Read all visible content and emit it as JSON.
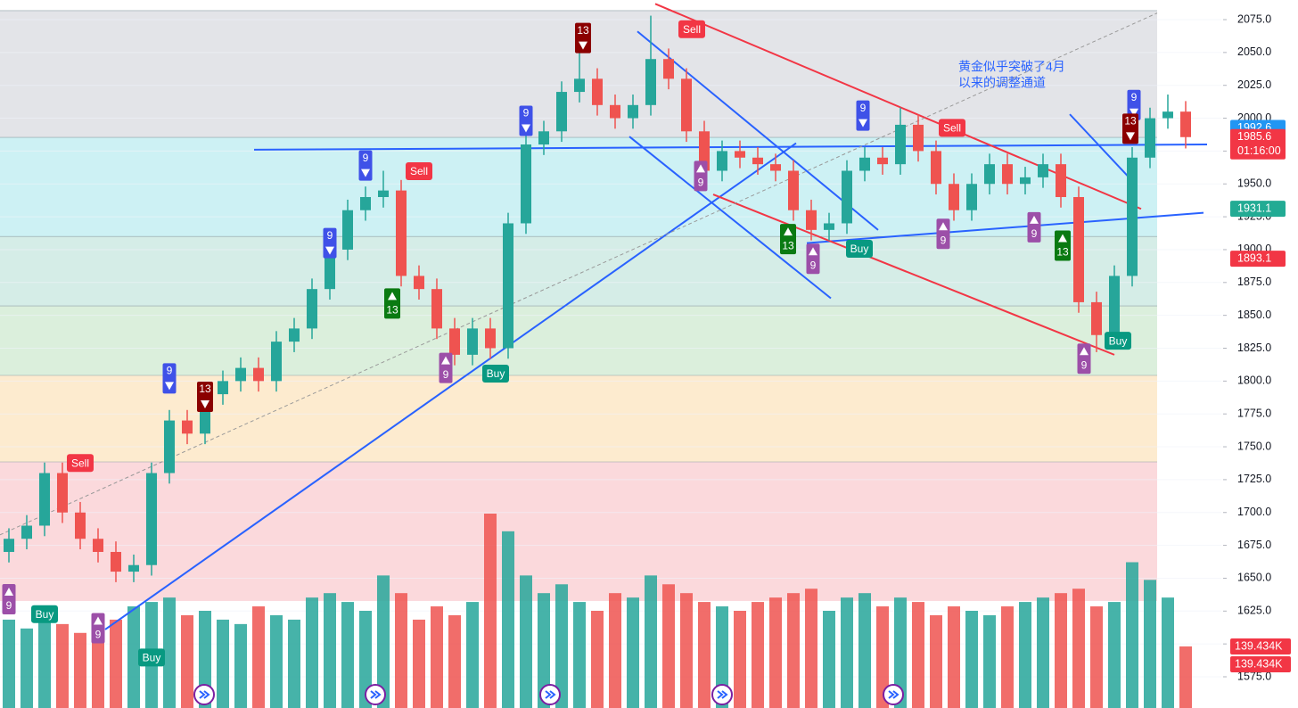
{
  "chart_data": {
    "type": "candlestick",
    "annotation": [
      "黄金似乎突破了4月",
      "以来的调整通道"
    ],
    "open": [
      1670,
      1680,
      1690,
      1730,
      1700,
      1680,
      1670,
      1655,
      1660,
      1730,
      1770,
      1760,
      1790,
      1800,
      1810,
      1800,
      1830,
      1840,
      1870,
      1900,
      1930,
      1940,
      1945,
      1880,
      1870,
      1840,
      1820,
      1840,
      1825,
      1920,
      1980,
      1990,
      2020,
      2030,
      2010,
      2000,
      2010,
      2045,
      2030,
      1990,
      1960,
      1975,
      1970,
      1965,
      1960,
      1930,
      1915,
      1920,
      1960,
      1970,
      1965,
      1995,
      1975,
      1950,
      1930,
      1950,
      1965,
      1950,
      1955,
      1965,
      1940,
      1860,
      1835,
      1880,
      1970,
      2000,
      2005
    ],
    "high": [
      1688,
      1698,
      1738,
      1738,
      1708,
      1688,
      1678,
      1668,
      1738,
      1778,
      1778,
      1798,
      1808,
      1818,
      1818,
      1838,
      1848,
      1878,
      1908,
      1938,
      1948,
      1960,
      1953,
      1888,
      1878,
      1848,
      1848,
      1848,
      1928,
      1988,
      1998,
      2028,
      2055,
      2038,
      2018,
      2018,
      2078,
      2053,
      2038,
      1998,
      1983,
      1983,
      1978,
      1973,
      1968,
      1938,
      1928,
      1968,
      1978,
      1978,
      2008,
      2003,
      1983,
      1958,
      1958,
      1973,
      1973,
      1963,
      1973,
      1973,
      1948,
      1868,
      1888,
      1978,
      2008,
      2018,
      2013
    ],
    "low": [
      1662,
      1672,
      1682,
      1692,
      1672,
      1662,
      1647,
      1647,
      1652,
      1722,
      1752,
      1752,
      1782,
      1792,
      1792,
      1792,
      1822,
      1832,
      1862,
      1892,
      1922,
      1932,
      1872,
      1862,
      1832,
      1812,
      1812,
      1817,
      1817,
      1912,
      1972,
      1982,
      2012,
      2002,
      1992,
      1992,
      2002,
      2022,
      1982,
      1952,
      1952,
      1962,
      1957,
      1952,
      1922,
      1907,
      1907,
      1912,
      1952,
      1957,
      1957,
      1967,
      1942,
      1922,
      1922,
      1942,
      1942,
      1942,
      1947,
      1932,
      1852,
      1822,
      1827,
      1872,
      1962,
      1992,
      1977
    ],
    "close": [
      1680,
      1690,
      1730,
      1700,
      1680,
      1670,
      1655,
      1660,
      1730,
      1770,
      1760,
      1790,
      1800,
      1810,
      1800,
      1830,
      1840,
      1870,
      1900,
      1930,
      1940,
      1945,
      1880,
      1870,
      1840,
      1820,
      1840,
      1825,
      1920,
      1980,
      1990,
      2020,
      2030,
      2010,
      2000,
      2010,
      2045,
      2030,
      1990,
      1960,
      1975,
      1970,
      1965,
      1960,
      1930,
      1915,
      1920,
      1960,
      1970,
      1965,
      1995,
      1975,
      1950,
      1930,
      1950,
      1965,
      1950,
      1955,
      1965,
      1940,
      1860,
      1835,
      1880,
      1970,
      2000,
      2005,
      1985.6
    ],
    "volume": [
      200,
      180,
      210,
      190,
      170,
      160,
      200,
      230,
      240,
      250,
      210,
      220,
      200,
      190,
      230,
      210,
      200,
      250,
      260,
      240,
      220,
      300,
      260,
      200,
      230,
      210,
      240,
      440,
      400,
      300,
      260,
      280,
      240,
      220,
      260,
      250,
      300,
      280,
      260,
      240,
      230,
      220,
      240,
      250,
      260,
      270,
      220,
      250,
      260,
      230,
      250,
      240,
      210,
      230,
      220,
      210,
      230,
      240,
      250,
      260,
      270,
      230,
      240,
      330,
      290,
      250,
      139.434
    ],
    "vlim": [
      0,
      440
    ],
    "up_color": "#26a69a",
    "down_color": "#ef5350",
    "ylim": [
      1575,
      2075
    ],
    "yticks": [
      {
        "value": 1575,
        "label": "1575.0"
      },
      {
        "value": 1600,
        "label": "1600.0"
      },
      {
        "value": 1625,
        "label": "1625.0"
      },
      {
        "value": 1650,
        "label": "1650.0"
      },
      {
        "value": 1675,
        "label": "1675.0"
      },
      {
        "value": 1700,
        "label": "1700.0"
      },
      {
        "value": 1725,
        "label": "1725.0"
      },
      {
        "value": 1750,
        "label": "1750.0"
      },
      {
        "value": 1775,
        "label": "1775.0"
      },
      {
        "value": 1800,
        "label": "1800.0"
      },
      {
        "value": 1825,
        "label": "1825.0"
      },
      {
        "value": 1850,
        "label": "1850.0"
      },
      {
        "value": 1875,
        "label": "1875.0"
      },
      {
        "value": 1900,
        "label": "1900.0"
      },
      {
        "value": 1925,
        "label": "1925.0"
      },
      {
        "value": 1950,
        "label": "1950.0"
      },
      {
        "value": 1975,
        "label": "1975.0"
      },
      {
        "value": 2000,
        "label": "2000.0"
      },
      {
        "value": 2025,
        "label": "2025.0"
      },
      {
        "value": 2050,
        "label": "2050.0"
      },
      {
        "value": 2075,
        "label": "2075.0"
      }
    ],
    "zones": [
      {
        "from": 1985.4,
        "to": 2081.8,
        "color": "#e3e4e8"
      },
      {
        "from": 1910,
        "to": 1985.4,
        "color": "#cdf1f4"
      },
      {
        "from": 1857.2,
        "to": 1910,
        "color": "#d5ede7"
      },
      {
        "from": 1804.3,
        "to": 1857.2,
        "color": "#dbefdc"
      },
      {
        "from": 1738.5,
        "to": 1804.3,
        "color": "#fdebcf"
      },
      {
        "from": 1632.7,
        "to": 1738.5,
        "color": "#fbd9dc"
      }
    ],
    "signals": [
      {
        "i": 4,
        "price": 1737,
        "text": "Sell",
        "kind": "sell"
      },
      {
        "i": 2,
        "price": 1622,
        "text": "Buy",
        "kind": "buy"
      },
      {
        "i": 0,
        "price": 1634,
        "text": "9",
        "kind": "up9"
      },
      {
        "i": 5,
        "price": 1612,
        "text": "9",
        "kind": "up9"
      },
      {
        "i": 8,
        "price": 1589,
        "text": "Buy",
        "kind": "buy"
      },
      {
        "i": 9,
        "price": 1802,
        "text": "9",
        "kind": "down9"
      },
      {
        "i": 11,
        "price": 1788,
        "text": "13",
        "kind": "down13"
      },
      {
        "i": 18,
        "price": 1905,
        "text": "9",
        "kind": "down9"
      },
      {
        "i": 20,
        "price": 1964,
        "text": "9",
        "kind": "down9"
      },
      {
        "i": 23,
        "price": 1959,
        "text": "Sell",
        "kind": "sell"
      },
      {
        "i": 21.5,
        "price": 1859,
        "text": "13",
        "kind": "up13"
      },
      {
        "i": 24.5,
        "price": 1810,
        "text": "9",
        "kind": "up9"
      },
      {
        "i": 27.3,
        "price": 1805,
        "text": "Buy",
        "kind": "buy"
      },
      {
        "i": 29,
        "price": 1998,
        "text": "9",
        "kind": "down9"
      },
      {
        "i": 32.2,
        "price": 2061,
        "text": "13",
        "kind": "down13"
      },
      {
        "i": 38.3,
        "price": 2067,
        "text": "Sell",
        "kind": "sell"
      },
      {
        "i": 38.8,
        "price": 1956,
        "text": "9",
        "kind": "up9"
      },
      {
        "i": 43.7,
        "price": 1908,
        "text": "13",
        "kind": "up13"
      },
      {
        "i": 45.1,
        "price": 1893,
        "text": "9",
        "kind": "up9"
      },
      {
        "i": 47.9,
        "price": 2002,
        "text": "9",
        "kind": "down9"
      },
      {
        "i": 47.7,
        "price": 1900,
        "text": "Buy",
        "kind": "buy"
      },
      {
        "i": 52.9,
        "price": 1992,
        "text": "Sell",
        "kind": "sell"
      },
      {
        "i": 52.4,
        "price": 1912,
        "text": "9",
        "kind": "up9"
      },
      {
        "i": 57.5,
        "price": 1917,
        "text": "9",
        "kind": "up9"
      },
      {
        "i": 59.1,
        "price": 1903,
        "text": "13",
        "kind": "up13"
      },
      {
        "i": 60.3,
        "price": 1817,
        "text": "9",
        "kind": "up9"
      },
      {
        "i": 62.2,
        "price": 1830,
        "text": "Buy",
        "kind": "buy"
      },
      {
        "i": 63.1,
        "price": 2010,
        "text": "9",
        "kind": "down9"
      },
      {
        "i": 62.9,
        "price": 1992,
        "text": "13",
        "kind": "down13"
      }
    ],
    "drawings": [
      {
        "x": [
          13.75,
          67.2
        ],
        "y": [
          1976,
          1980
        ],
        "color": "#2962ff"
      },
      {
        "x": [
          5.4,
          44.15
        ],
        "y": [
          1611,
          1981
        ],
        "color": "#2962ff"
      },
      {
        "x": [
          35.25,
          48.75
        ],
        "y": [
          2066,
          1915
        ],
        "color": "#2962ff"
      },
      {
        "x": [
          34.8,
          46.1
        ],
        "y": [
          1986,
          1863
        ],
        "color": "#2962ff"
      },
      {
        "x": [
          44.75,
          67
        ],
        "y": [
          1905,
          1928
        ],
        "color": "#2962ff"
      },
      {
        "x": [
          36.25,
          63.5
        ],
        "y": [
          2087,
          1931
        ],
        "color": "#f23645"
      },
      {
        "x": [
          39.5,
          62
        ],
        "y": [
          1942,
          1820
        ],
        "color": "#f23645"
      },
      {
        "x": [
          59.5,
          62.75
        ],
        "y": [
          2003,
          1956
        ],
        "color": "#2962ff"
      },
      {
        "x": [
          -0.5,
          64.4
        ],
        "y": [
          1683,
          2080
        ],
        "color": "#999999",
        "dashed": true
      }
    ],
    "markers": [
      {
        "value": 1992.6,
        "color": "#2196f3"
      },
      {
        "value": 1985.6,
        "color": "#f23645",
        "time": "01:16:00"
      },
      {
        "value": 1931.1,
        "color": "#22ab94"
      },
      {
        "value": 1893.1,
        "color": "#f23645"
      }
    ],
    "volume_markers": [
      {
        "value": 139.434,
        "label": "139.434K"
      },
      {
        "value": 139.434,
        "label": "139.434K"
      }
    ]
  }
}
